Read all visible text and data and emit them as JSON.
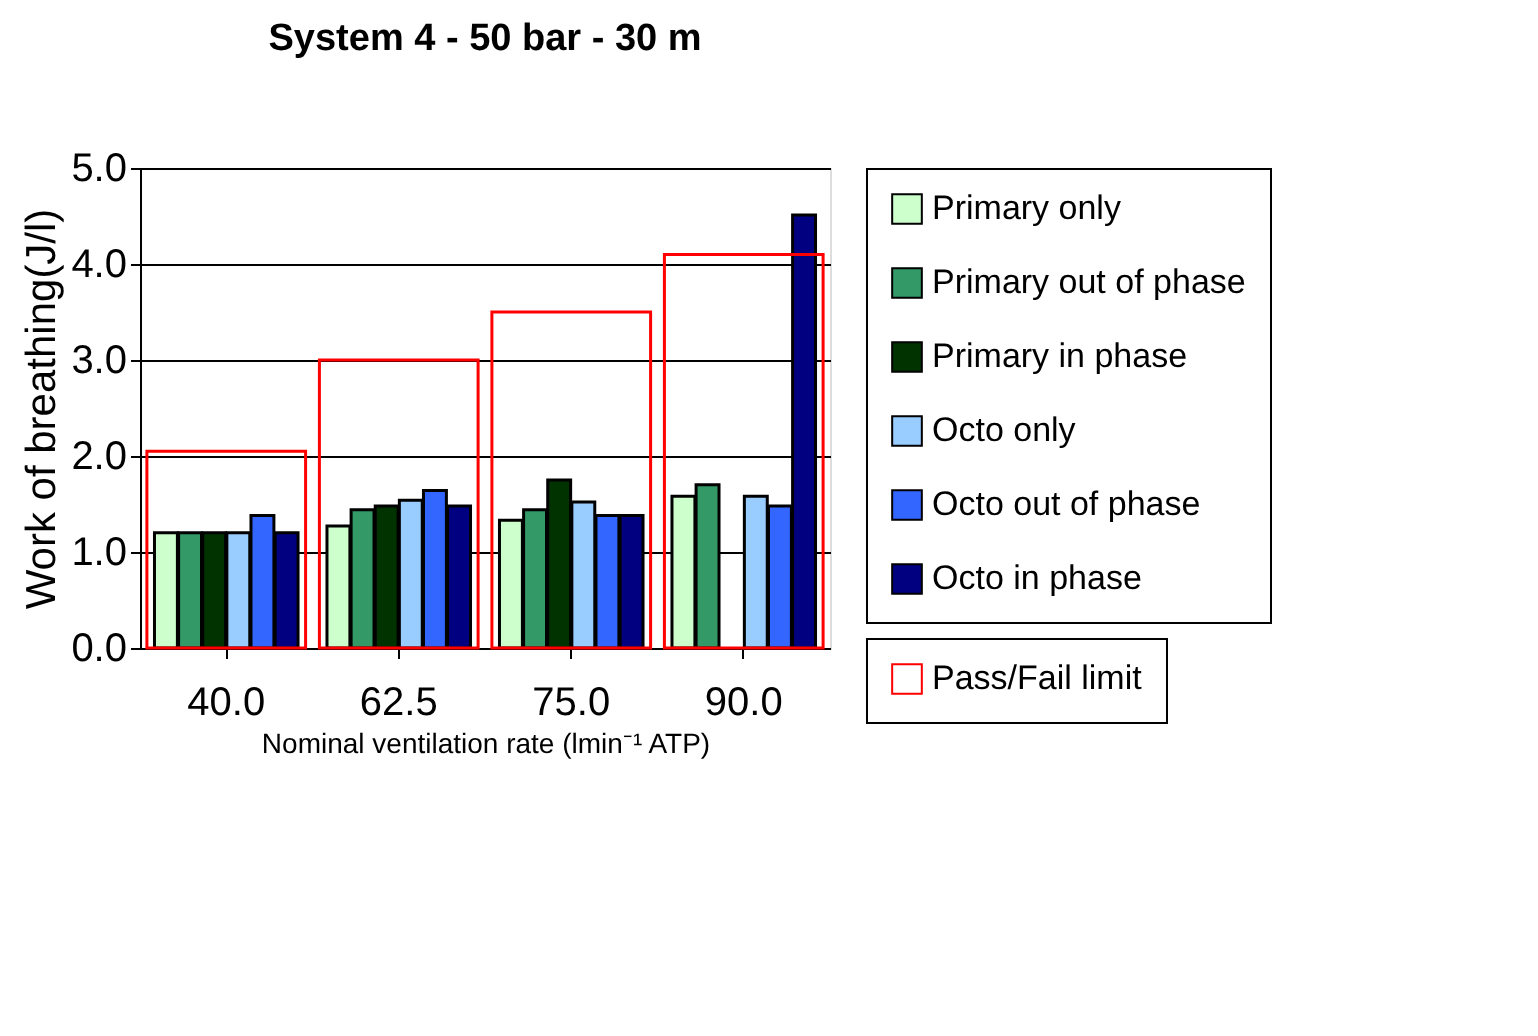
{
  "chart_data": {
    "type": "bar",
    "title": "System 4 -  50 bar - 30 m",
    "xlabel": "Nominal ventilation rate (lmin⁻¹ ATP)",
    "ylabel": "Work of breathing(J/l)",
    "categories": [
      "40.0",
      "62.5",
      "75.0",
      "90.0"
    ],
    "series": [
      {
        "name": "Primary only",
        "color": "#ccffcc",
        "values": [
          1.2,
          1.27,
          1.33,
          1.58
        ]
      },
      {
        "name": "Primary out of phase",
        "color": "#339966",
        "values": [
          1.2,
          1.44,
          1.44,
          1.7
        ]
      },
      {
        "name": "Primary in phase",
        "color": "#003300",
        "values": [
          1.2,
          1.48,
          1.75,
          null
        ]
      },
      {
        "name": "Octo only",
        "color": "#99ccff",
        "values": [
          1.2,
          1.54,
          1.52,
          1.58
        ]
      },
      {
        "name": "Octo out of phase",
        "color": "#3366ff",
        "values": [
          1.38,
          1.64,
          1.38,
          1.48
        ]
      },
      {
        "name": "Octo in phase",
        "color": "#000080",
        "values": [
          1.2,
          1.48,
          1.38,
          4.51
        ]
      },
      {
        "name": "Pass/Fail limit",
        "color": "#ff0000",
        "values": [
          2.05,
          3.0,
          3.5,
          4.1
        ]
      }
    ],
    "ylim": [
      0,
      5
    ],
    "yticks": [
      {
        "value": 0,
        "label": "0.0"
      },
      {
        "value": 1,
        "label": "1.0"
      },
      {
        "value": 2,
        "label": "2.0"
      },
      {
        "value": 3,
        "label": "3.0"
      },
      {
        "value": 4,
        "label": "4.0"
      },
      {
        "value": 5,
        "label": "5.0"
      }
    ],
    "grid": "y",
    "legend": "right"
  }
}
